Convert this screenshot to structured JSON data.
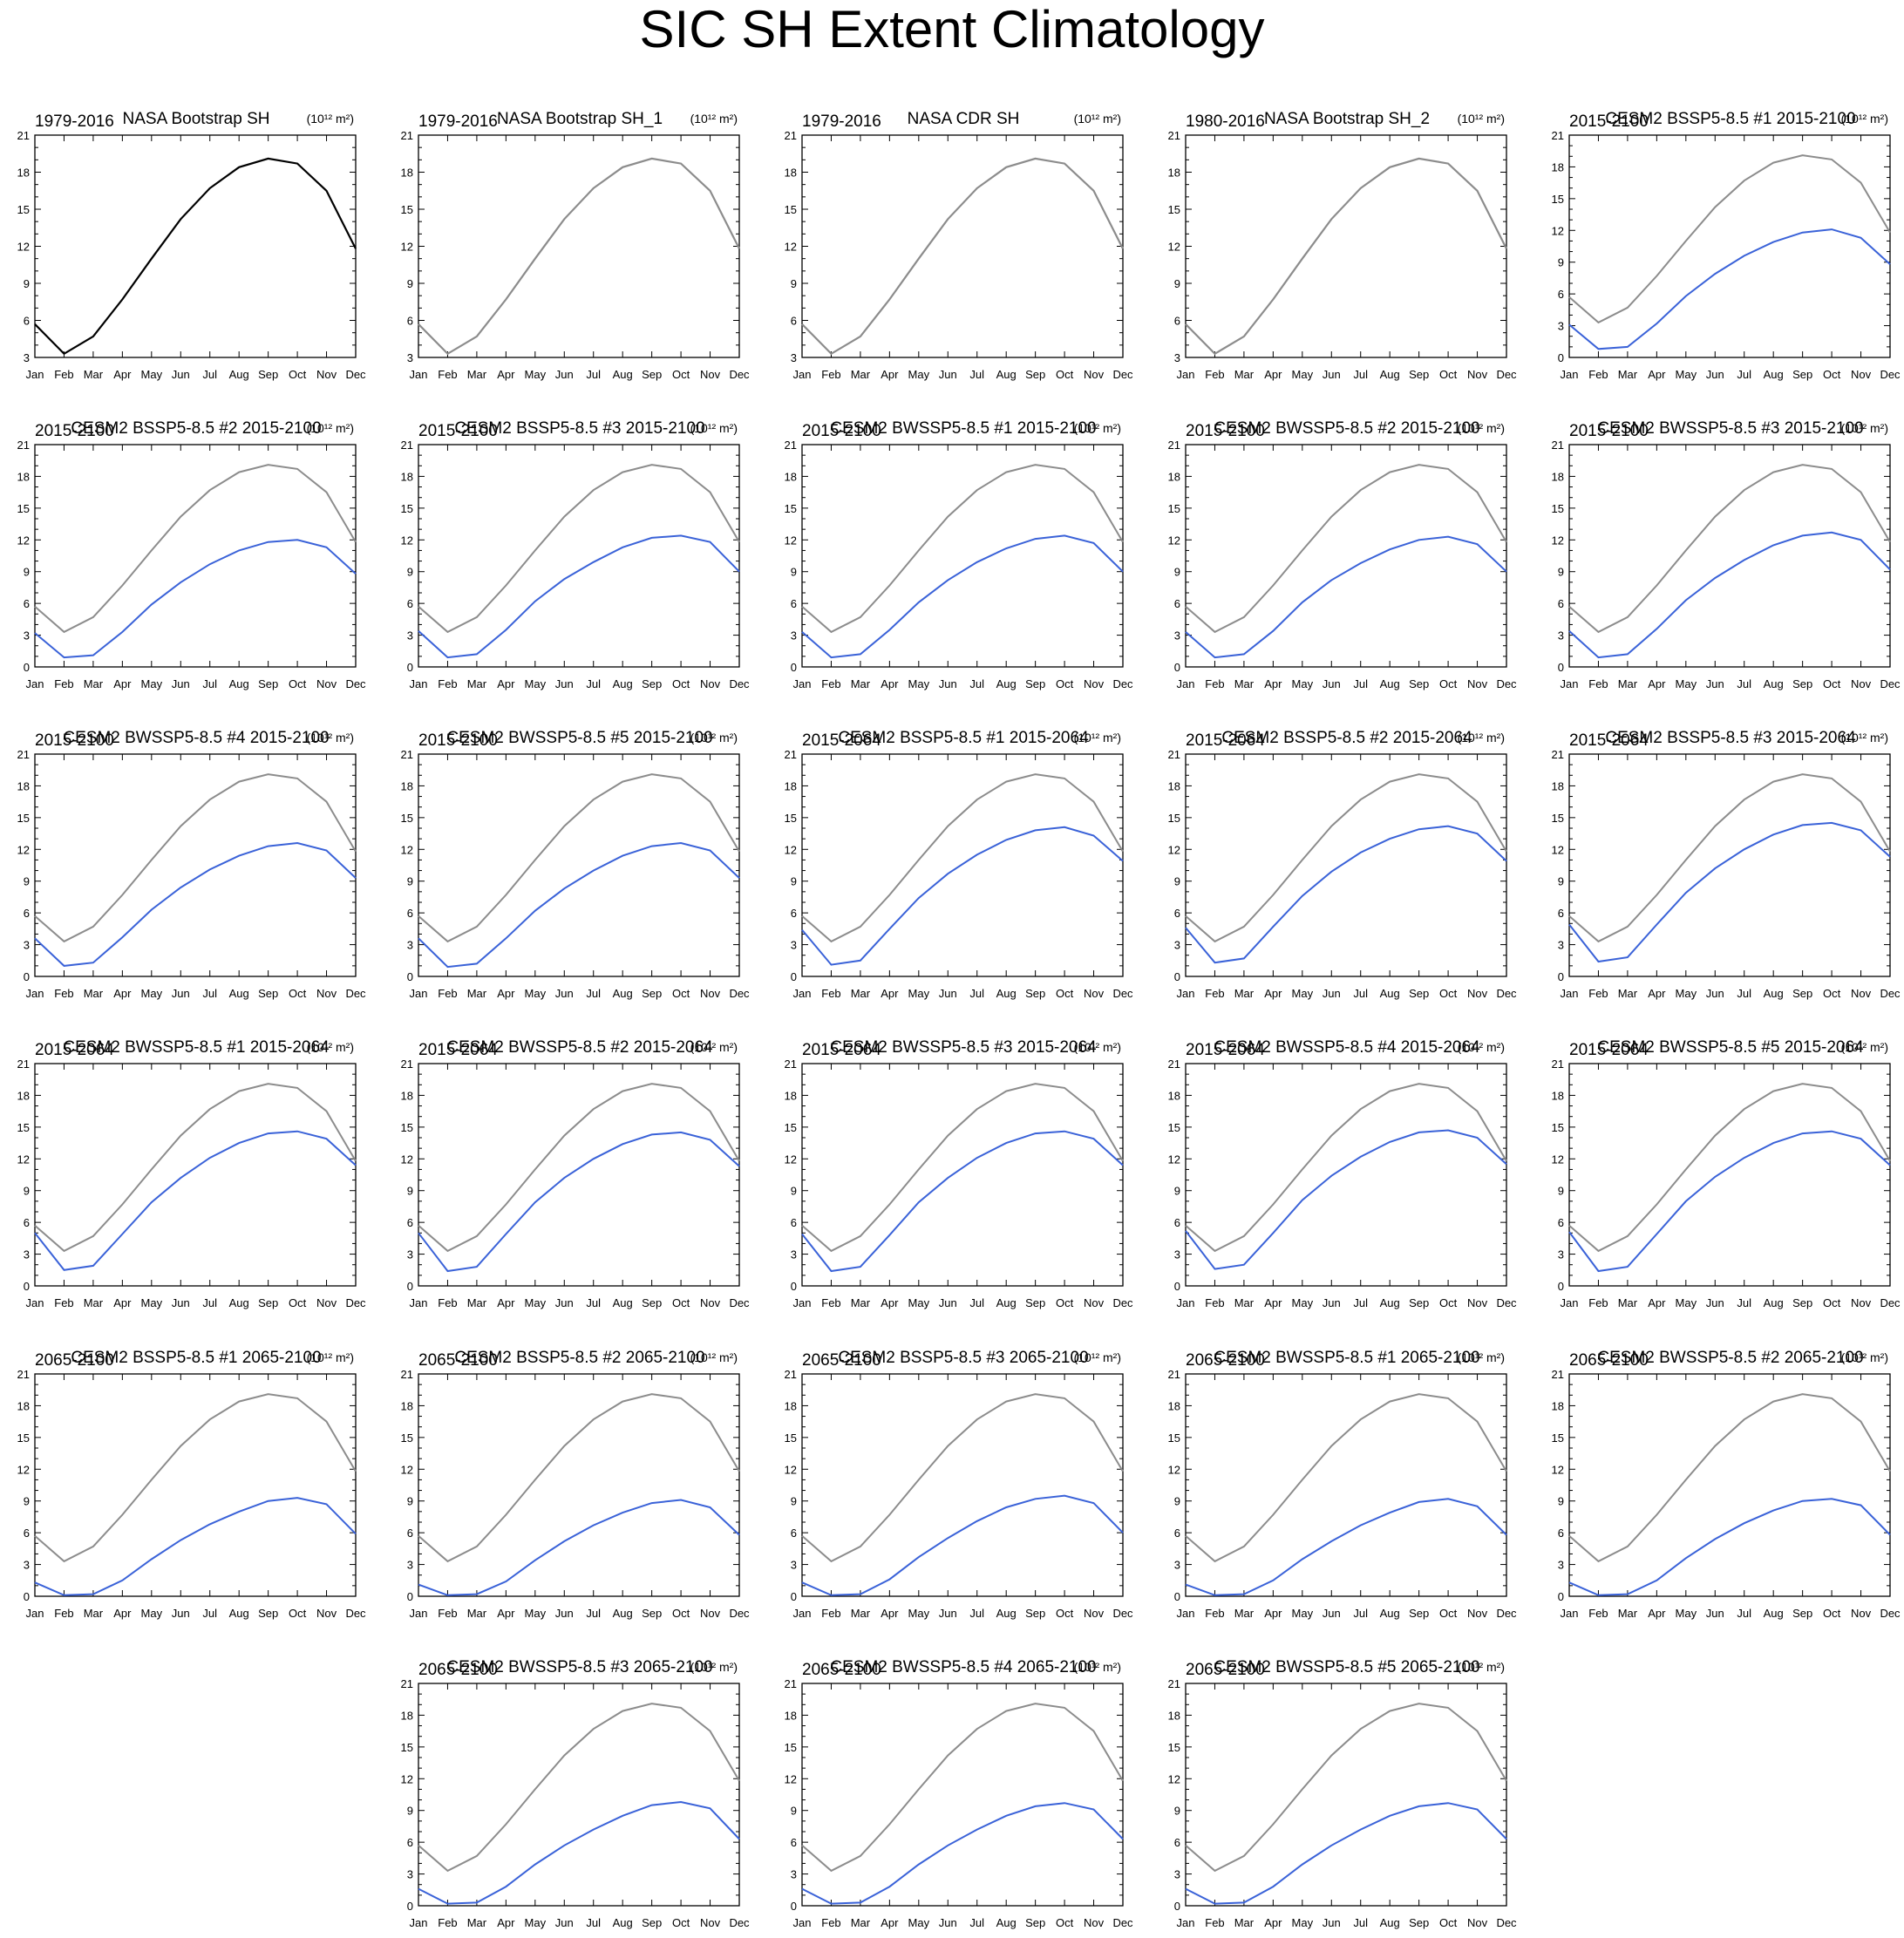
{
  "title": "SIC SH Extent Climatology",
  "units_label": "(10¹² m²)",
  "colors": {
    "observation": "#000000",
    "reference": "#8c8c8c",
    "model": "#3a62d8"
  },
  "chart_data": {
    "type": "line",
    "months": [
      "Jan",
      "Feb",
      "Mar",
      "Apr",
      "May",
      "Jun",
      "Jul",
      "Aug",
      "Sep",
      "Oct",
      "Nov",
      "Dec"
    ],
    "reference": [
      5.7,
      3.3,
      4.7,
      7.7,
      11.0,
      14.2,
      16.7,
      18.4,
      19.1,
      18.7,
      16.5,
      11.8
    ],
    "panels": [
      {
        "left": "1979-2016",
        "center": "NASA Bootstrap SH",
        "ylim": [
          3,
          21
        ],
        "ticks": [
          3,
          6,
          9,
          12,
          15,
          18,
          21
        ],
        "values": [
          5.7,
          3.3,
          4.7,
          7.7,
          11.0,
          14.2,
          16.7,
          18.4,
          19.1,
          18.7,
          16.5,
          11.8
        ],
        "style": "obs"
      },
      {
        "left": "1979-2016",
        "center": "NASA Bootstrap SH_1",
        "ylim": [
          3,
          21
        ],
        "ticks": [
          3,
          6,
          9,
          12,
          15,
          18,
          21
        ],
        "values": [
          5.7,
          3.3,
          4.7,
          7.7,
          11.0,
          14.2,
          16.7,
          18.4,
          19.1,
          18.7,
          16.5,
          11.8
        ],
        "style": "ref"
      },
      {
        "left": "1979-2016",
        "center": "NASA CDR SH",
        "ylim": [
          3,
          21
        ],
        "ticks": [
          3,
          6,
          9,
          12,
          15,
          18,
          21
        ],
        "values": [
          5.7,
          3.3,
          4.7,
          7.7,
          11.0,
          14.2,
          16.7,
          18.4,
          19.1,
          18.7,
          16.5,
          11.8
        ],
        "style": "ref"
      },
      {
        "left": "1980-2016",
        "center": "NASA Bootstrap SH_2",
        "ylim": [
          3,
          21
        ],
        "ticks": [
          3,
          6,
          9,
          12,
          15,
          18,
          21
        ],
        "values": [
          5.7,
          3.3,
          4.7,
          7.7,
          11.0,
          14.2,
          16.7,
          18.4,
          19.1,
          18.7,
          16.5,
          11.8
        ],
        "style": "ref"
      },
      {
        "left": "2015-2100",
        "center": "CESM2 BSSP5-8.5 #1 2015-2100",
        "ylim": [
          0,
          21
        ],
        "ticks": [
          0,
          3,
          6,
          9,
          12,
          15,
          18,
          21
        ],
        "values": [
          3.1,
          0.8,
          1.0,
          3.2,
          5.8,
          7.9,
          9.6,
          10.9,
          11.8,
          12.1,
          11.3,
          8.8
        ],
        "style": "model"
      },
      {
        "left": "2015-2100",
        "center": "CESM2 BSSP5-8.5 #2 2015-2100",
        "ylim": [
          0,
          21
        ],
        "ticks": [
          0,
          3,
          6,
          9,
          12,
          15,
          18,
          21
        ],
        "values": [
          3.2,
          0.9,
          1.1,
          3.3,
          5.9,
          8.0,
          9.7,
          11.0,
          11.8,
          12.0,
          11.3,
          8.8
        ],
        "style": "model"
      },
      {
        "left": "2015-2100",
        "center": "CESM2 BSSP5-8.5 #3 2015-2100",
        "ylim": [
          0,
          21
        ],
        "ticks": [
          0,
          3,
          6,
          9,
          12,
          15,
          18,
          21
        ],
        "values": [
          3.4,
          0.9,
          1.2,
          3.5,
          6.2,
          8.3,
          9.9,
          11.3,
          12.2,
          12.4,
          11.8,
          9.0
        ],
        "style": "model"
      },
      {
        "left": "2015-2100",
        "center": "CESM2 BWSSP5-8.5 #1 2015-2100",
        "ylim": [
          0,
          21
        ],
        "ticks": [
          0,
          3,
          6,
          9,
          12,
          15,
          18,
          21
        ],
        "values": [
          3.3,
          0.9,
          1.2,
          3.5,
          6.1,
          8.2,
          9.9,
          11.2,
          12.1,
          12.4,
          11.7,
          9.0
        ],
        "style": "model"
      },
      {
        "left": "2015-2100",
        "center": "CESM2 BWSSP5-8.5 #2 2015-2100",
        "ylim": [
          0,
          21
        ],
        "ticks": [
          0,
          3,
          6,
          9,
          12,
          15,
          18,
          21
        ],
        "values": [
          3.3,
          0.9,
          1.2,
          3.4,
          6.1,
          8.2,
          9.8,
          11.1,
          12.0,
          12.3,
          11.6,
          9.0
        ],
        "style": "model"
      },
      {
        "left": "2015-2100",
        "center": "CESM2 BWSSP5-8.5 #3 2015-2100",
        "ylim": [
          0,
          21
        ],
        "ticks": [
          0,
          3,
          6,
          9,
          12,
          15,
          18,
          21
        ],
        "values": [
          3.4,
          0.9,
          1.2,
          3.6,
          6.3,
          8.4,
          10.1,
          11.5,
          12.4,
          12.7,
          12.0,
          9.2
        ],
        "style": "model"
      },
      {
        "left": "2015-2100",
        "center": "CESM2 BWSSP5-8.5 #4 2015-2100",
        "ylim": [
          0,
          21
        ],
        "ticks": [
          0,
          3,
          6,
          9,
          12,
          15,
          18,
          21
        ],
        "values": [
          3.6,
          1.0,
          1.3,
          3.7,
          6.3,
          8.4,
          10.1,
          11.4,
          12.3,
          12.6,
          11.9,
          9.3
        ],
        "style": "model"
      },
      {
        "left": "2015-2100",
        "center": "CESM2 BWSSP5-8.5 #5 2015-2100",
        "ylim": [
          0,
          21
        ],
        "ticks": [
          0,
          3,
          6,
          9,
          12,
          15,
          18,
          21
        ],
        "values": [
          3.6,
          0.9,
          1.2,
          3.6,
          6.2,
          8.3,
          10.0,
          11.4,
          12.3,
          12.6,
          11.9,
          9.3
        ],
        "style": "model"
      },
      {
        "left": "2015-2064",
        "center": "CESM2 BSSP5-8.5 #1 2015-2064",
        "ylim": [
          0,
          21
        ],
        "ticks": [
          0,
          3,
          6,
          9,
          12,
          15,
          18,
          21
        ],
        "values": [
          4.4,
          1.1,
          1.5,
          4.5,
          7.4,
          9.7,
          11.5,
          12.9,
          13.8,
          14.1,
          13.3,
          10.9
        ],
        "style": "model"
      },
      {
        "left": "2015-2064",
        "center": "CESM2 BSSP5-8.5 #2 2015-2064",
        "ylim": [
          0,
          21
        ],
        "ticks": [
          0,
          3,
          6,
          9,
          12,
          15,
          18,
          21
        ],
        "values": [
          4.6,
          1.3,
          1.7,
          4.7,
          7.6,
          9.9,
          11.7,
          13.0,
          13.9,
          14.2,
          13.5,
          10.9
        ],
        "style": "model"
      },
      {
        "left": "2015-2064",
        "center": "CESM2 BSSP5-8.5 #3 2015-2064",
        "ylim": [
          0,
          21
        ],
        "ticks": [
          0,
          3,
          6,
          9,
          12,
          15,
          18,
          21
        ],
        "values": [
          4.9,
          1.4,
          1.8,
          4.9,
          7.9,
          10.2,
          12.0,
          13.4,
          14.3,
          14.5,
          13.8,
          11.3
        ],
        "style": "model"
      },
      {
        "left": "2015-2064",
        "center": "CESM2 BWSSP5-8.5 #1 2015-2064",
        "ylim": [
          0,
          21
        ],
        "ticks": [
          0,
          3,
          6,
          9,
          12,
          15,
          18,
          21
        ],
        "values": [
          5.0,
          1.5,
          1.9,
          4.9,
          7.9,
          10.2,
          12.1,
          13.5,
          14.4,
          14.6,
          13.9,
          11.4
        ],
        "style": "model"
      },
      {
        "left": "2015-2064",
        "center": "CESM2 BWSSP5-8.5 #2 2015-2064",
        "ylim": [
          0,
          21
        ],
        "ticks": [
          0,
          3,
          6,
          9,
          12,
          15,
          18,
          21
        ],
        "values": [
          5.0,
          1.4,
          1.8,
          4.9,
          7.9,
          10.2,
          12.0,
          13.4,
          14.3,
          14.5,
          13.8,
          11.3
        ],
        "style": "model"
      },
      {
        "left": "2015-2064",
        "center": "CESM2 BWSSP5-8.5 #3 2015-2064",
        "ylim": [
          0,
          21
        ],
        "ticks": [
          0,
          3,
          6,
          9,
          12,
          15,
          18,
          21
        ],
        "values": [
          4.9,
          1.4,
          1.8,
          4.8,
          7.9,
          10.2,
          12.1,
          13.5,
          14.4,
          14.6,
          13.9,
          11.4
        ],
        "style": "model"
      },
      {
        "left": "2015-2064",
        "center": "CESM2 BWSSP5-8.5 #4 2015-2064",
        "ylim": [
          0,
          21
        ],
        "ticks": [
          0,
          3,
          6,
          9,
          12,
          15,
          18,
          21
        ],
        "values": [
          5.2,
          1.6,
          2.0,
          5.0,
          8.1,
          10.4,
          12.2,
          13.6,
          14.5,
          14.7,
          14.0,
          11.5
        ],
        "style": "model"
      },
      {
        "left": "2015-2064",
        "center": "CESM2 BWSSP5-8.5 #5 2015-2064",
        "ylim": [
          0,
          21
        ],
        "ticks": [
          0,
          3,
          6,
          9,
          12,
          15,
          18,
          21
        ],
        "values": [
          5.1,
          1.4,
          1.8,
          4.9,
          8.0,
          10.3,
          12.1,
          13.5,
          14.4,
          14.6,
          13.9,
          11.4
        ],
        "style": "model"
      },
      {
        "left": "2065-2100",
        "center": "CESM2 BSSP5-8.5 #1 2065-2100",
        "ylim": [
          0,
          21
        ],
        "ticks": [
          0,
          3,
          6,
          9,
          12,
          15,
          18,
          21
        ],
        "values": [
          1.3,
          0.1,
          0.2,
          1.5,
          3.5,
          5.3,
          6.8,
          8.0,
          9.0,
          9.3,
          8.7,
          5.9
        ],
        "style": "model"
      },
      {
        "left": "2065-2100",
        "center": "CESM2 BSSP5-8.5 #2 2065-2100",
        "ylim": [
          0,
          21
        ],
        "ticks": [
          0,
          3,
          6,
          9,
          12,
          15,
          18,
          21
        ],
        "values": [
          1.1,
          0.1,
          0.2,
          1.4,
          3.4,
          5.2,
          6.7,
          7.9,
          8.8,
          9.1,
          8.4,
          5.8
        ],
        "style": "model"
      },
      {
        "left": "2065-2100",
        "center": "CESM2 BSSP5-8.5 #3 2065-2100",
        "ylim": [
          0,
          21
        ],
        "ticks": [
          0,
          3,
          6,
          9,
          12,
          15,
          18,
          21
        ],
        "values": [
          1.3,
          0.1,
          0.2,
          1.6,
          3.7,
          5.5,
          7.1,
          8.4,
          9.2,
          9.5,
          8.8,
          6.0
        ],
        "style": "model"
      },
      {
        "left": "2065-2100",
        "center": "CESM2 BWSSP5-8.5 #1 2065-2100",
        "ylim": [
          0,
          21
        ],
        "ticks": [
          0,
          3,
          6,
          9,
          12,
          15,
          18,
          21
        ],
        "values": [
          1.1,
          0.1,
          0.2,
          1.5,
          3.5,
          5.2,
          6.7,
          7.9,
          8.9,
          9.2,
          8.5,
          5.8
        ],
        "style": "model"
      },
      {
        "left": "2065-2100",
        "center": "CESM2 BWSSP5-8.5 #2 2065-2100",
        "ylim": [
          0,
          21
        ],
        "ticks": [
          0,
          3,
          6,
          9,
          12,
          15,
          18,
          21
        ],
        "values": [
          1.3,
          0.1,
          0.2,
          1.5,
          3.6,
          5.4,
          6.9,
          8.1,
          9.0,
          9.2,
          8.6,
          5.8
        ],
        "style": "model"
      },
      {
        "left": "2065-2100",
        "center": "CESM2 BWSSP5-8.5 #3 2065-2100",
        "ylim": [
          0,
          21
        ],
        "ticks": [
          0,
          3,
          6,
          9,
          12,
          15,
          18,
          21
        ],
        "values": [
          1.6,
          0.2,
          0.3,
          1.8,
          3.9,
          5.7,
          7.2,
          8.5,
          9.5,
          9.8,
          9.2,
          6.3
        ],
        "style": "model"
      },
      {
        "left": "2065-2100",
        "center": "CESM2 BWSSP5-8.5 #4 2065-2100",
        "ylim": [
          0,
          21
        ],
        "ticks": [
          0,
          3,
          6,
          9,
          12,
          15,
          18,
          21
        ],
        "values": [
          1.6,
          0.2,
          0.3,
          1.8,
          3.9,
          5.7,
          7.2,
          8.5,
          9.4,
          9.7,
          9.1,
          6.3
        ],
        "style": "model"
      },
      {
        "left": "2065-2100",
        "center": "CESM2 BWSSP5-8.5 #5 2065-2100",
        "ylim": [
          0,
          21
        ],
        "ticks": [
          0,
          3,
          6,
          9,
          12,
          15,
          18,
          21
        ],
        "values": [
          1.6,
          0.2,
          0.3,
          1.8,
          3.9,
          5.7,
          7.2,
          8.5,
          9.4,
          9.7,
          9.1,
          6.3
        ],
        "style": "model"
      }
    ]
  }
}
